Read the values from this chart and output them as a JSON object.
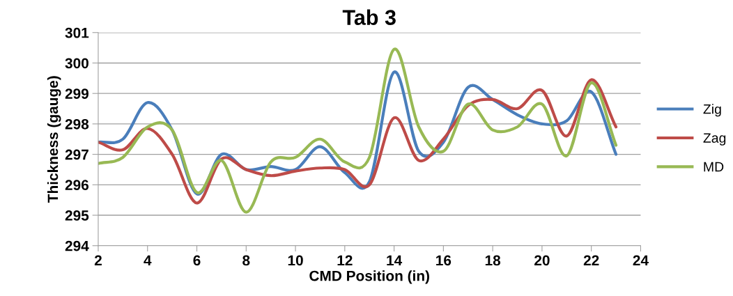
{
  "chart_data": {
    "type": "line",
    "title": "Tab 3",
    "xlabel": "CMD Position (in)",
    "ylabel": "Thickness (gauge)",
    "x": [
      2,
      3,
      4,
      5,
      6,
      7,
      8,
      9,
      10,
      11,
      12,
      13,
      14,
      15,
      16,
      17,
      18,
      19,
      20,
      21,
      22,
      23
    ],
    "series": [
      {
        "name": "Zig",
        "color": "#4a7ebb",
        "values": [
          297.4,
          297.5,
          298.7,
          297.8,
          295.7,
          297.0,
          296.5,
          296.6,
          296.5,
          297.25,
          296.4,
          296.1,
          299.7,
          297.1,
          297.4,
          299.2,
          298.8,
          298.3,
          298.0,
          298.1,
          299.05,
          297.0
        ]
      },
      {
        "name": "Zag",
        "color": "#be4b48",
        "values": [
          297.4,
          297.15,
          297.85,
          297.0,
          295.4,
          296.85,
          296.5,
          296.3,
          296.45,
          296.55,
          296.5,
          296.0,
          298.2,
          296.8,
          297.5,
          298.6,
          298.8,
          298.5,
          299.1,
          297.6,
          299.45,
          297.9
        ]
      },
      {
        "name": "MD",
        "color": "#98b954",
        "values": [
          296.7,
          296.9,
          297.9,
          297.8,
          295.75,
          296.8,
          295.1,
          296.75,
          296.9,
          297.5,
          296.75,
          296.9,
          300.45,
          297.9,
          297.1,
          298.65,
          297.8,
          297.9,
          298.65,
          296.95,
          299.35,
          297.3
        ]
      }
    ],
    "xlim": [
      2,
      24
    ],
    "xticks": [
      2,
      4,
      6,
      8,
      10,
      12,
      14,
      16,
      18,
      20,
      22,
      24
    ],
    "ylim": [
      294,
      301
    ],
    "yticks": [
      294,
      295,
      296,
      297,
      298,
      299,
      300,
      301
    ],
    "grid": "y",
    "legend": "right",
    "marker": "none",
    "line_style": "solid"
  }
}
